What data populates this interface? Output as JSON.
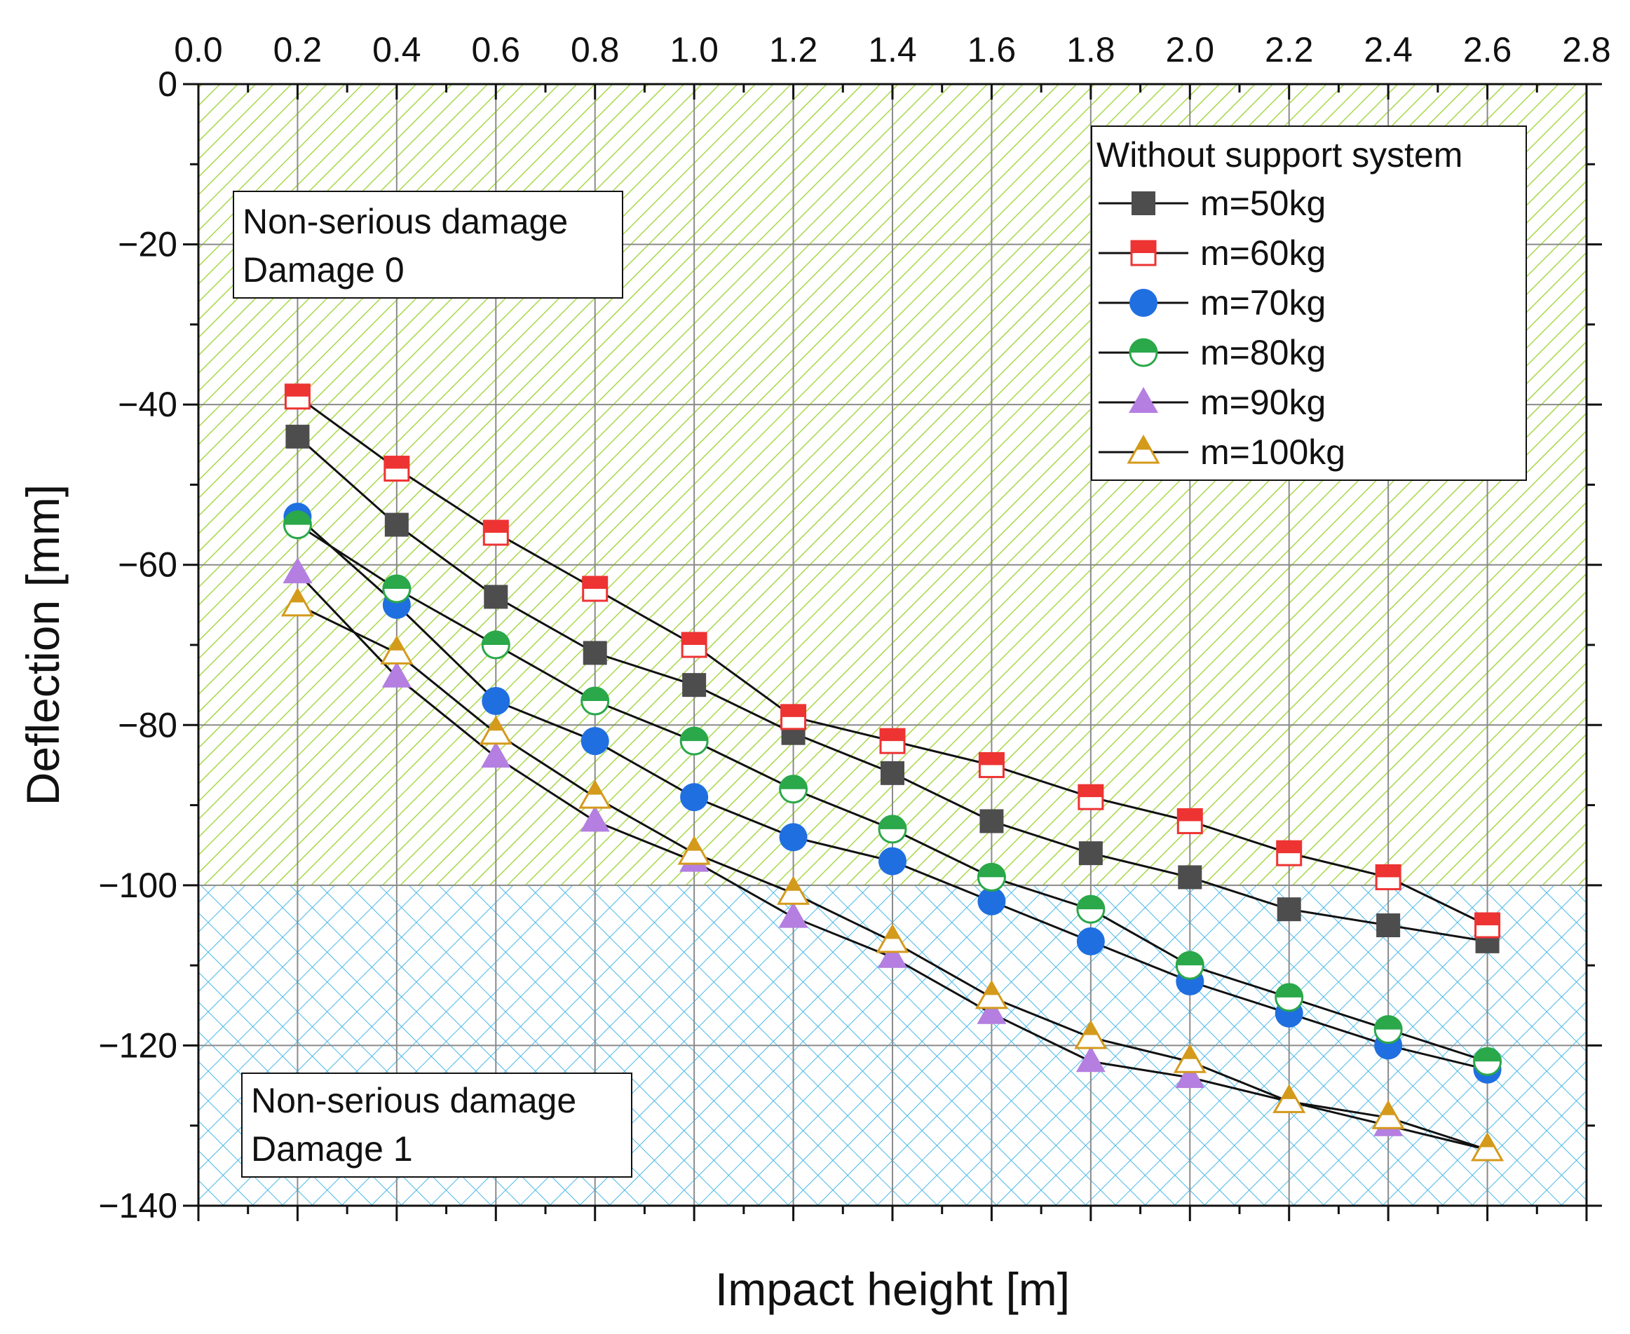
{
  "chart_data": {
    "type": "line",
    "title": "",
    "xlabel": "Impact height [m]",
    "ylabel": "Deflection [mm]",
    "xlim": [
      0.0,
      2.8
    ],
    "ylim": [
      -140,
      0
    ],
    "x_ticks": [
      "0.0",
      "0.2",
      "0.4",
      "0.6",
      "0.8",
      "1.0",
      "1.2",
      "1.4",
      "1.6",
      "1.8",
      "2.0",
      "2.2",
      "2.4",
      "2.6",
      "2.8"
    ],
    "y_ticks": [
      "0",
      "−20",
      "−40",
      "−60",
      "−80",
      "−100",
      "−120",
      "−140"
    ],
    "x_axis_position": "top",
    "grid": true,
    "x": [
      0.2,
      0.4,
      0.6,
      0.8,
      1.0,
      1.2,
      1.4,
      1.6,
      1.8,
      2.0,
      2.2,
      2.4,
      2.6
    ],
    "series": [
      {
        "name": "m=50kg",
        "marker": "square",
        "color": "#4d4d4d",
        "values": [
          -44,
          -55,
          -64,
          -71,
          -75,
          -81,
          -86,
          -92,
          -96,
          -99,
          -103,
          -105,
          -107
        ]
      },
      {
        "name": "m=60kg",
        "marker": "square-half",
        "color": "#ee3333",
        "values": [
          -39,
          -48,
          -56,
          -63,
          -70,
          -79,
          -82,
          -85,
          -89,
          -92,
          -96,
          -99,
          -105
        ]
      },
      {
        "name": "m=70kg",
        "marker": "circle",
        "color": "#1f6fe0",
        "values": [
          -54,
          -65,
          -77,
          -82,
          -89,
          -94,
          -97,
          -102,
          -107,
          -112,
          -116,
          -120,
          -123
        ]
      },
      {
        "name": "m=80kg",
        "marker": "circle-half",
        "color": "#2aa84a",
        "values": [
          -55,
          -63,
          -70,
          -77,
          -82,
          -88,
          -93,
          -99,
          -103,
          -110,
          -114,
          -118,
          -122
        ]
      },
      {
        "name": "m=90kg",
        "marker": "triangle",
        "color": "#b47fe0",
        "values": [
          -61,
          -74,
          -84,
          -92,
          -97,
          -104,
          -109,
          -116,
          -122,
          -124,
          -127,
          -130,
          -133
        ]
      },
      {
        "name": "m=100kg",
        "marker": "triangle-half",
        "color": "#d49a1c",
        "values": [
          -65,
          -71,
          -81,
          -89,
          -96,
          -101,
          -107,
          -114,
          -119,
          -122,
          -127,
          -129,
          -133
        ]
      }
    ],
    "legend": {
      "title": "Without support system",
      "placement": "top-right"
    },
    "regions": [
      {
        "name": "zone-0",
        "y_range": [
          -100,
          0
        ],
        "color": "#a8d84a",
        "label_line1": "Non-serious damage",
        "label_line2": "Damage 0"
      },
      {
        "name": "zone-1",
        "y_range": [
          -140,
          -100
        ],
        "color": "#48b8e8",
        "label_line1": "Non-serious damage",
        "label_line2": "Damage 1"
      }
    ]
  }
}
